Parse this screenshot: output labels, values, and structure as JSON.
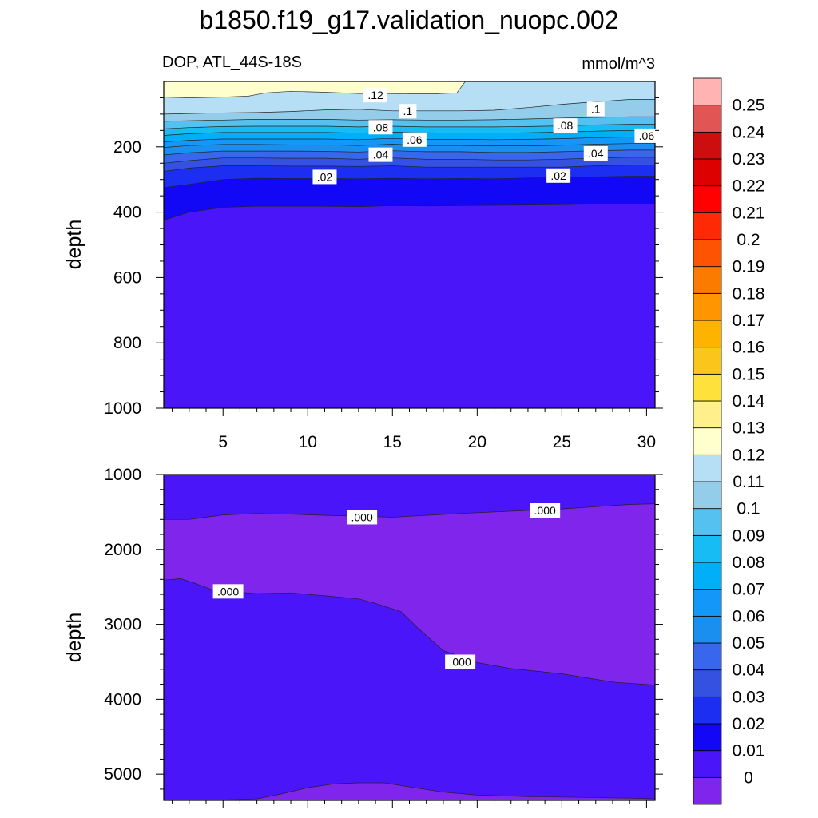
{
  "title": "b1850.f19_g17.validation_nuopc.002",
  "chart_data": [
    {
      "type": "contour",
      "panel": "upper",
      "left_label": "DOP, ATL_44S-18S",
      "right_label": "mmol/m^3",
      "ylabel": "depth",
      "ylim": [
        1000,
        0
      ],
      "y_ticks": [
        "200",
        "400",
        "600",
        "800",
        "1000"
      ],
      "xlim": [
        1.5,
        30.5
      ],
      "x_ticks": [
        "5",
        "10",
        "15",
        "20",
        "25",
        "30"
      ],
      "x_tick_values": [
        5,
        10,
        15,
        20,
        25,
        30
      ],
      "x": [
        1.5,
        3,
        5,
        7,
        9,
        11,
        13,
        15,
        17,
        19,
        21,
        23,
        25,
        27,
        29,
        30.5
      ],
      "isolines": [
        {
          "level": 0.01,
          "depth": [
            425,
            400,
            385,
            382,
            382,
            382,
            383,
            380,
            381,
            380,
            379,
            378,
            377,
            375,
            375,
            375
          ]
        },
        {
          "level": 0.02,
          "depth": [
            325,
            315,
            300,
            296,
            297,
            297,
            298,
            296,
            298,
            297,
            298,
            295,
            294,
            292,
            290,
            290
          ]
        },
        {
          "level": 0.03,
          "depth": [
            275,
            265,
            258,
            258,
            259,
            259,
            260,
            258,
            262,
            262,
            262,
            262,
            262,
            258,
            256,
            256
          ]
        },
        {
          "level": 0.04,
          "depth": [
            250,
            242,
            234,
            234,
            235,
            235,
            238,
            234,
            238,
            238,
            240,
            240,
            238,
            234,
            232,
            232
          ]
        },
        {
          "level": 0.05,
          "depth": [
            225,
            218,
            213,
            213,
            213,
            214,
            216,
            212,
            215,
            215,
            217,
            217,
            215,
            212,
            210,
            210
          ]
        },
        {
          "level": 0.06,
          "depth": [
            202,
            196,
            193,
            193,
            194,
            194,
            196,
            192,
            196,
            196,
            197,
            197,
            195,
            192,
            190,
            190
          ]
        },
        {
          "level": 0.07,
          "depth": [
            185,
            180,
            176,
            176,
            176,
            176,
            178,
            174,
            177,
            177,
            178,
            177,
            175,
            172,
            170,
            170
          ]
        },
        {
          "level": 0.08,
          "depth": [
            165,
            160,
            156,
            156,
            156,
            156,
            158,
            155,
            157,
            158,
            158,
            157,
            155,
            152,
            150,
            150
          ]
        },
        {
          "level": 0.09,
          "depth": [
            145,
            141,
            138,
            137,
            137,
            137,
            139,
            137,
            139,
            139,
            139,
            138,
            136,
            133,
            131,
            131
          ]
        },
        {
          "level": 0.1,
          "depth": [
            122,
            120,
            118,
            116,
            116,
            116,
            118,
            117,
            118,
            118,
            117,
            115,
            112,
            110,
            108,
            108
          ]
        },
        {
          "level": 0.11,
          "depth": [
            100,
            98,
            96,
            95,
            92,
            87,
            85,
            90,
            90,
            90,
            88,
            80,
            70,
            62,
            55,
            55
          ]
        }
      ],
      "high_zone": {
        "level": 0.12,
        "x": [
          1.5,
          3,
          5,
          6.5,
          7.5,
          9,
          11,
          13,
          14.5,
          16,
          17.5,
          18.8,
          19.3
        ],
        "depth": [
          48,
          50,
          48,
          45,
          35,
          30,
          33,
          37,
          37,
          38,
          38,
          35,
          0
        ]
      },
      "contour_labels": [
        {
          "text": ".12",
          "x": 14.0,
          "depth": 42
        },
        {
          "text": ".1",
          "x": 15.9,
          "depth": 91
        },
        {
          "text": ".1",
          "x": 27.0,
          "depth": 84
        },
        {
          "text": ".08",
          "x": 14.3,
          "depth": 140
        },
        {
          "text": ".08",
          "x": 25.2,
          "depth": 135
        },
        {
          "text": ".06",
          "x": 16.3,
          "depth": 178
        },
        {
          "text": ".06",
          "x": 30.0,
          "depth": 166
        },
        {
          "text": ".04",
          "x": 14.3,
          "depth": 224
        },
        {
          "text": ".04",
          "x": 27.0,
          "depth": 220
        },
        {
          "text": ".02",
          "x": 11.0,
          "depth": 292
        },
        {
          "text": ".02",
          "x": 24.8,
          "depth": 288
        }
      ]
    },
    {
      "type": "contour",
      "panel": "lower",
      "ylabel": "depth",
      "ylim": [
        5350,
        1000
      ],
      "y_ticks": [
        "1000",
        "2000",
        "3000",
        "4000",
        "5000"
      ],
      "xlim": [
        1.5,
        30.5
      ],
      "zones": [
        {
          "level": 0,
          "top_boundary": {
            "x": [
              1.5,
              3,
              5,
              7,
              9,
              11,
              13,
              15,
              17,
              19,
              21,
              23,
              25,
              27,
              29,
              30.5
            ],
            "depth": [
              1600,
              1600,
              1540,
              1520,
              1530,
              1545,
              1555,
              1570,
              1545,
              1520,
              1500,
              1480,
              1460,
              1430,
              1400,
              1390
            ]
          },
          "bottom_boundary": {
            "x": [
              1.5,
              2.5,
              3.3,
              4.5,
              7,
              9,
              11,
              13,
              14,
              15.5,
              16.5,
              18,
              20,
              22,
              25,
              28,
              30.5
            ],
            "depth": [
              2410,
              2390,
              2450,
              2550,
              2590,
              2580,
              2620,
              2660,
              2720,
              2830,
              3050,
              3350,
              3510,
              3590,
              3660,
              3770,
              3810
            ]
          }
        },
        {
          "level": 0,
          "top_boundary": {
            "x": [
              5,
              7,
              8.5,
              10,
              11.5,
              13,
              14.5,
              16,
              18,
              20,
              23,
              26,
              29,
              30.5
            ],
            "depth": [
              5345,
              5330,
              5260,
              5180,
              5130,
              5115,
              5115,
              5170,
              5240,
              5280,
              5300,
              5310,
              5320,
              5330
            ]
          }
        }
      ],
      "contour_labels": [
        {
          "text": ".000",
          "x": 13.2,
          "depth": 1570
        },
        {
          "text": ".000",
          "x": 24.0,
          "depth": 1480
        },
        {
          "text": ".000",
          "x": 5.3,
          "depth": 2560
        },
        {
          "text": ".000",
          "x": 19.0,
          "depth": 3500
        }
      ]
    }
  ],
  "colorbar": {
    "labels": [
      "0",
      "0.01",
      "0.02",
      "0.03",
      "0.04",
      "0.05",
      "0.06",
      "0.07",
      "0.08",
      "0.09",
      "0.1",
      "0.11",
      "0.12",
      "0.13",
      "0.14",
      "0.15",
      "0.16",
      "0.17",
      "0.18",
      "0.19",
      "0.2",
      "0.21",
      "0.22",
      "0.23",
      "0.24",
      "0.25"
    ],
    "colors": [
      "#8026ec",
      "#4a15f8",
      "#1208f6",
      "#1c2ef2",
      "#3451e2",
      "#3866ec",
      "#1a8ff0",
      "#1398f9",
      "#01aef8",
      "#17bcf4",
      "#55c1f0",
      "#94cdea",
      "#b6dff5",
      "#ffffcd",
      "#fff08c",
      "#ffe13c",
      "#fbc61b",
      "#ffb301",
      "#ff9501",
      "#fb7b01",
      "#fd5403",
      "#fe2a05",
      "#ff0101",
      "#dd0101",
      "#cc0e0e",
      "#e25555",
      "#ffb3b3"
    ]
  }
}
